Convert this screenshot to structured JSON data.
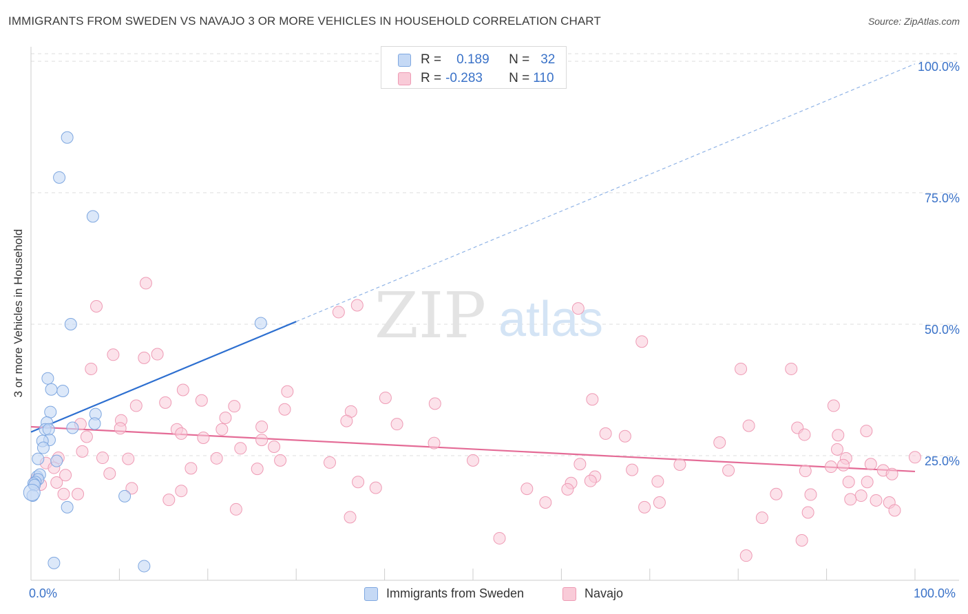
{
  "title": "IMMIGRANTS FROM SWEDEN VS NAVAJO 3 OR MORE VEHICLES IN HOUSEHOLD CORRELATION CHART",
  "source": "Source: ZipAtlas.com",
  "watermark": {
    "zip": "ZIP",
    "atlas": "atlas"
  },
  "legend_top": {
    "rows": [
      {
        "r_label": "R =",
        "r_value": "0.189",
        "n_label": "N =",
        "n_value": "32"
      },
      {
        "r_label": "R =",
        "r_value": "-0.283",
        "n_label": "N =",
        "n_value": "110"
      }
    ]
  },
  "legend_bottom": [
    "Immigrants from Sweden",
    "Navajo"
  ],
  "colors": {
    "sweden_fill": "#c5d9f5",
    "sweden_stroke": "#7ea7e0",
    "sweden_line": "#2d6fd0",
    "navajo_fill": "#f9cbd8",
    "navajo_stroke": "#ee9ab4",
    "navajo_line": "#e46b96",
    "tick_text": "#3a72c8",
    "grid": "#dddddd"
  },
  "chart_data": {
    "type": "scatter",
    "title": "IMMIGRANTS FROM SWEDEN VS NAVAJO 3 OR MORE VEHICLES IN HOUSEHOLD CORRELATION CHART",
    "xlabel": "",
    "ylabel": "3 or more Vehicles in Household",
    "xlim": [
      0,
      100
    ],
    "ylim": [
      0,
      102
    ],
    "x_tick_labels": [
      "0.0%",
      "100.0%"
    ],
    "y_ticks": [
      25,
      50,
      75,
      100
    ],
    "y_tick_labels": [
      "25.0%",
      "50.0%",
      "75.0%",
      "100.0%"
    ],
    "grid": "horizontal dashed",
    "legend_placement": "bottom",
    "series": [
      {
        "name": "Immigrants from Sweden",
        "r": 0.189,
        "n": 32,
        "trend": {
          "x0": 0,
          "y0": 29.5,
          "x1": 30,
          "y1": 50.5,
          "dashed_to": [
            100,
            99.5
          ]
        },
        "points": [
          [
            4.1,
            85.5
          ],
          [
            3.2,
            77.9
          ],
          [
            7.0,
            70.5
          ],
          [
            26.0,
            50.2
          ],
          [
            4.5,
            50.0
          ],
          [
            1.9,
            39.7
          ],
          [
            3.6,
            37.3
          ],
          [
            2.3,
            37.6
          ],
          [
            2.2,
            33.3
          ],
          [
            7.3,
            32.9
          ],
          [
            1.8,
            31.3
          ],
          [
            7.2,
            31.1
          ],
          [
            1.6,
            30.0
          ],
          [
            2.0,
            30.0
          ],
          [
            4.7,
            30.3
          ],
          [
            2.1,
            28.0
          ],
          [
            1.3,
            27.8
          ],
          [
            1.4,
            26.5
          ],
          [
            0.8,
            24.4
          ],
          [
            2.9,
            24.0
          ],
          [
            0.7,
            21.0
          ],
          [
            1.0,
            21.4
          ],
          [
            0.8,
            20.5
          ],
          [
            0.5,
            20.0
          ],
          [
            0.3,
            19.7
          ],
          [
            0.4,
            19.4
          ],
          [
            0.2,
            17.4
          ],
          [
            10.6,
            17.3
          ],
          [
            4.1,
            15.2
          ],
          [
            2.6,
            4.6
          ],
          [
            12.8,
            4.0
          ],
          [
            0.1,
            18.0
          ]
        ]
      },
      {
        "name": "Navajo",
        "r": -0.283,
        "n": 110,
        "trend": {
          "x0": 0,
          "y0": 30.5,
          "x1": 100,
          "y1": 22.0
        },
        "points": [
          [
            13.0,
            57.8
          ],
          [
            7.4,
            53.4
          ],
          [
            34.8,
            52.3
          ],
          [
            36.9,
            53.6
          ],
          [
            61.9,
            53.0
          ],
          [
            9.3,
            44.2
          ],
          [
            12.8,
            43.6
          ],
          [
            14.3,
            44.3
          ],
          [
            69.1,
            46.7
          ],
          [
            6.8,
            41.5
          ],
          [
            80.3,
            41.5
          ],
          [
            86.0,
            41.5
          ],
          [
            29.0,
            37.2
          ],
          [
            17.2,
            37.5
          ],
          [
            40.1,
            36.0
          ],
          [
            63.5,
            35.7
          ],
          [
            15.2,
            35.1
          ],
          [
            19.3,
            35.5
          ],
          [
            45.7,
            34.9
          ],
          [
            23.0,
            34.4
          ],
          [
            11.9,
            34.5
          ],
          [
            28.7,
            33.8
          ],
          [
            90.8,
            34.5
          ],
          [
            36.2,
            33.4
          ],
          [
            22.0,
            32.2
          ],
          [
            10.2,
            31.7
          ],
          [
            35.7,
            31.6
          ],
          [
            26.1,
            30.5
          ],
          [
            41.4,
            31.0
          ],
          [
            5.6,
            31.0
          ],
          [
            10.1,
            30.2
          ],
          [
            16.5,
            30.0
          ],
          [
            21.6,
            30.0
          ],
          [
            81.2,
            30.7
          ],
          [
            86.7,
            30.3
          ],
          [
            94.5,
            29.7
          ],
          [
            17.0,
            29.2
          ],
          [
            6.3,
            28.6
          ],
          [
            19.5,
            28.4
          ],
          [
            67.2,
            28.7
          ],
          [
            65.0,
            29.2
          ],
          [
            87.5,
            29.0
          ],
          [
            91.3,
            28.9
          ],
          [
            26.1,
            28.0
          ],
          [
            45.6,
            27.4
          ],
          [
            77.9,
            27.5
          ],
          [
            23.7,
            26.4
          ],
          [
            27.5,
            26.7
          ],
          [
            91.2,
            26.2
          ],
          [
            5.8,
            25.8
          ],
          [
            3.1,
            24.6
          ],
          [
            8.1,
            24.6
          ],
          [
            11.0,
            24.4
          ],
          [
            21.0,
            24.5
          ],
          [
            28.2,
            24.1
          ],
          [
            33.8,
            23.7
          ],
          [
            50.0,
            24.1
          ],
          [
            62.1,
            23.4
          ],
          [
            73.4,
            23.3
          ],
          [
            95.0,
            23.4
          ],
          [
            100,
            24.7
          ],
          [
            92.2,
            24.5
          ],
          [
            1.7,
            23.6
          ],
          [
            2.6,
            22.7
          ],
          [
            18.1,
            22.6
          ],
          [
            25.6,
            22.5
          ],
          [
            68.0,
            22.3
          ],
          [
            78.9,
            22.2
          ],
          [
            87.6,
            22.1
          ],
          [
            90.5,
            22.9
          ],
          [
            91.9,
            23.2
          ],
          [
            96.4,
            22.2
          ],
          [
            97.4,
            21.5
          ],
          [
            8.9,
            21.6
          ],
          [
            3.9,
            21.3
          ],
          [
            63.8,
            21.0
          ],
          [
            70.9,
            20.1
          ],
          [
            63.3,
            20.2
          ],
          [
            92.5,
            20.0
          ],
          [
            94.6,
            20.0
          ],
          [
            2.9,
            19.9
          ],
          [
            37.0,
            20.0
          ],
          [
            61.1,
            19.8
          ],
          [
            0.6,
            20.5
          ],
          [
            1.1,
            19.5
          ],
          [
            11.4,
            18.8
          ],
          [
            39.0,
            18.9
          ],
          [
            60.7,
            18.6
          ],
          [
            56.1,
            18.7
          ],
          [
            17.0,
            18.3
          ],
          [
            5.3,
            17.7
          ],
          [
            3.7,
            17.7
          ],
          [
            84.3,
            17.7
          ],
          [
            88.2,
            17.6
          ],
          [
            93.9,
            17.4
          ],
          [
            15.6,
            16.6
          ],
          [
            58.2,
            16.1
          ],
          [
            71.1,
            16.1
          ],
          [
            92.7,
            16.7
          ],
          [
            95.6,
            16.5
          ],
          [
            97.1,
            16.1
          ],
          [
            23.2,
            14.8
          ],
          [
            69.4,
            15.2
          ],
          [
            97.7,
            14.6
          ],
          [
            87.9,
            14.2
          ],
          [
            36.1,
            13.3
          ],
          [
            82.7,
            13.2
          ],
          [
            53.0,
            9.3
          ],
          [
            87.2,
            8.9
          ],
          [
            80.9,
            6.0
          ]
        ]
      }
    ]
  }
}
